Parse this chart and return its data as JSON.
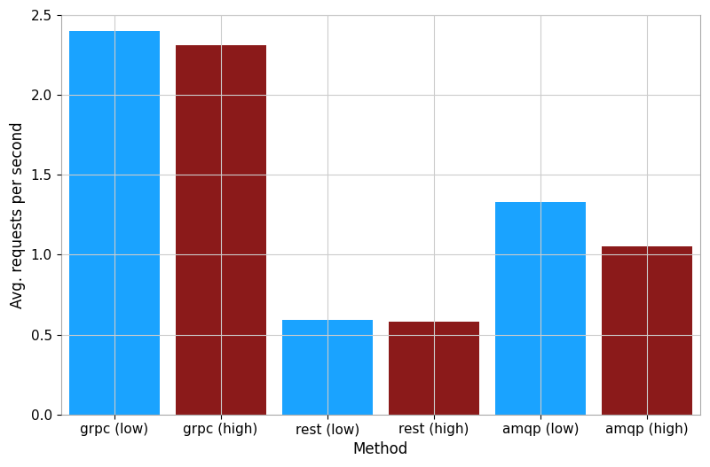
{
  "categories": [
    "grpc (low)",
    "grpc (high)",
    "rest (low)",
    "rest (high)",
    "amqp (low)",
    "amqp (high)"
  ],
  "values": [
    2.4,
    2.31,
    0.59,
    0.58,
    1.33,
    1.05
  ],
  "bar_colors": [
    "#1aa3ff",
    "#8b1a1a",
    "#1aa3ff",
    "#8b1a1a",
    "#1aa3ff",
    "#8b1a1a"
  ],
  "xlabel": "Method",
  "ylabel": "Avg. requests per second",
  "ylim": [
    0,
    2.5
  ],
  "yticks": [
    0.0,
    0.5,
    1.0,
    1.5,
    2.0,
    2.5
  ],
  "grid_color": "#cccccc",
  "background_color": "#ffffff",
  "bar_width": 0.85,
  "figsize": [
    8.0,
    5.27
  ],
  "dpi": 100,
  "xlabel_fontsize": 12,
  "ylabel_fontsize": 12,
  "tick_fontsize": 11
}
